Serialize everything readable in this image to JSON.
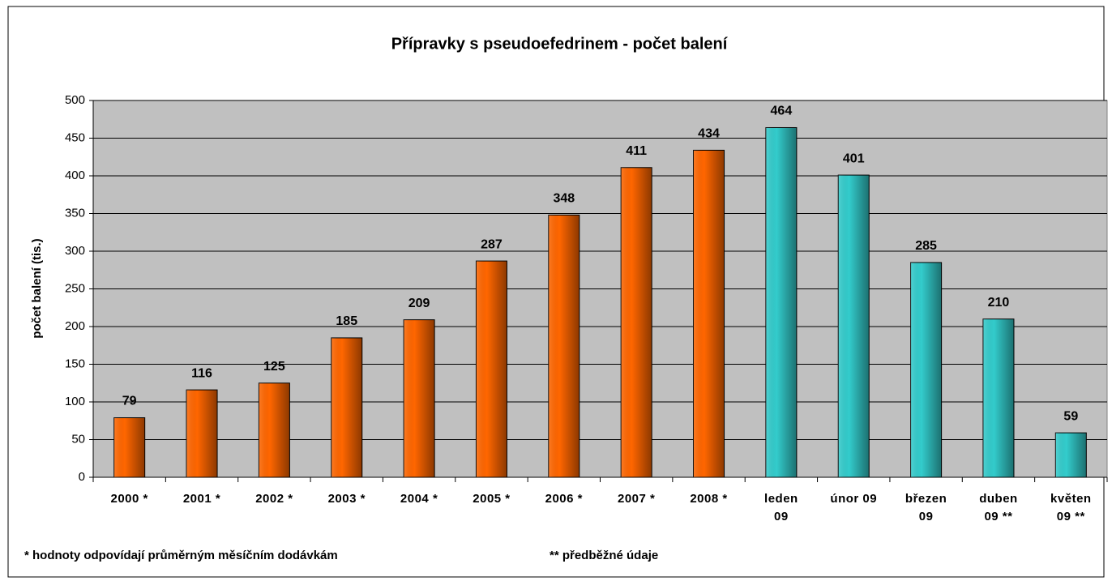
{
  "chart_data": {
    "type": "bar",
    "title": "Přípravky s pseudoefedrinem - počet balení",
    "y_label": "počet balení (tis.)",
    "categories": [
      "2000 *",
      "2001 *",
      "2002 *",
      "2003 *",
      "2004 *",
      "2005 *",
      "2006 *",
      "2007 *",
      "2008 *",
      "leden\n09",
      "únor 09",
      "březen\n09",
      "duben\n09 **",
      "květen\n09 **"
    ],
    "values": [
      79,
      116,
      125,
      185,
      209,
      287,
      348,
      411,
      434,
      464,
      401,
      285,
      210,
      59
    ],
    "colors": [
      "#ff6600",
      "#ff6600",
      "#ff6600",
      "#ff6600",
      "#ff6600",
      "#ff6600",
      "#ff6600",
      "#ff6600",
      "#ff6600",
      "#33cccc",
      "#33cccc",
      "#33cccc",
      "#33cccc",
      "#33cccc"
    ],
    "ylim": [
      0,
      500
    ],
    "yticks": [
      0,
      50,
      100,
      150,
      200,
      250,
      300,
      350,
      400,
      450,
      500
    ],
    "grid": true,
    "annotations": [
      "* hodnoty odpovídají průměrným měsíčním dodávkám",
      "** předběžné údaje"
    ]
  }
}
